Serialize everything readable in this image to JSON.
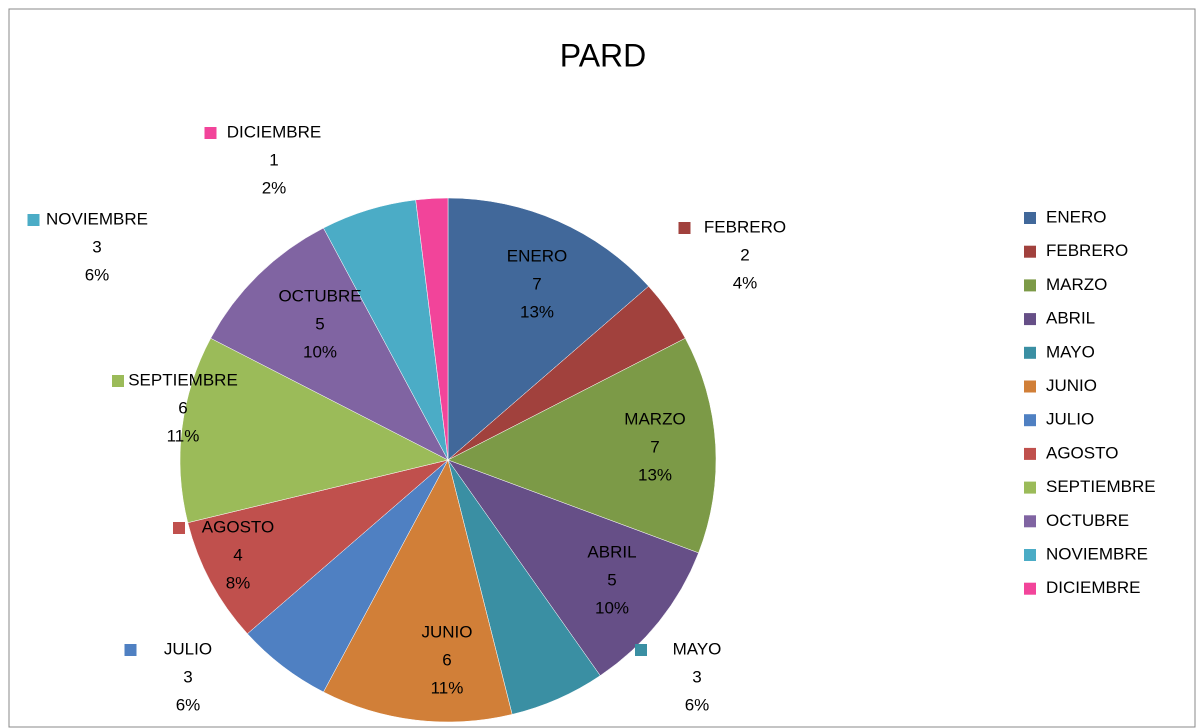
{
  "chart_data": {
    "type": "pie",
    "title": "PARD",
    "categories": [
      "ENERO",
      "FEBRERO",
      "MARZO",
      "ABRIL",
      "MAYO",
      "JUNIO",
      "JULIO",
      "AGOSTO",
      "SEPTIEMBRE",
      "OCTUBRE",
      "NOVIEMBRE",
      "DICIEMBRE"
    ],
    "values": [
      7,
      2,
      7,
      5,
      3,
      6,
      3,
      4,
      6,
      5,
      3,
      1
    ],
    "percent_labels": [
      "13%",
      "4%",
      "13%",
      "10%",
      "6%",
      "11%",
      "6%",
      "8%",
      "11%",
      "10%",
      "6%",
      "2%"
    ],
    "colors": [
      "#41689a",
      "#a1413d",
      "#7c9a47",
      "#664f87",
      "#3a8fa3",
      "#d17f38",
      "#4f80c2",
      "#c0504d",
      "#9bbb59",
      "#8064a2",
      "#4bacc6",
      "#f2449a"
    ],
    "legend": "right"
  }
}
